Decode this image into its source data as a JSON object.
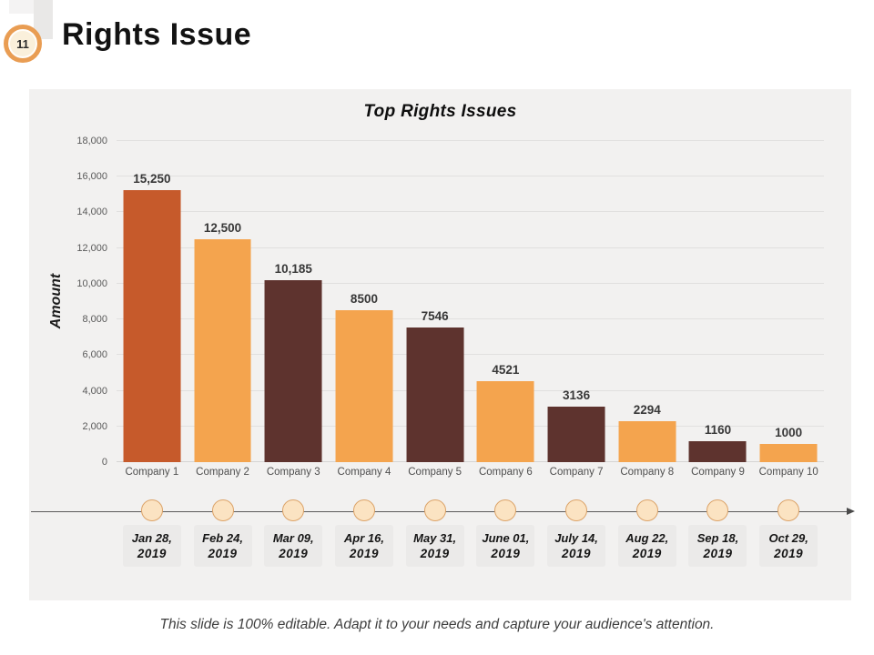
{
  "slide": {
    "badge_number": "11",
    "title": "Rights Issue",
    "footer_note": "This slide is 100% editable. Adapt it to your needs and capture your audience's attention."
  },
  "chart_data": {
    "type": "bar",
    "title": "Top Rights Issues",
    "xlabel": "",
    "ylabel": "Amount",
    "ylim": [
      0,
      18000
    ],
    "ytick_step": 2000,
    "grid": true,
    "legend_position": "none",
    "categories": [
      "Company 1",
      "Company 2",
      "Company 3",
      "Company 4",
      "Company 5",
      "Company 6",
      "Company 7",
      "Company 8",
      "Company 9",
      "Company 10"
    ],
    "values": [
      15250,
      12500,
      10185,
      8500,
      7546,
      4521,
      3136,
      2294,
      1160,
      1000
    ],
    "value_labels": [
      "15,250",
      "12,500",
      "10,185",
      "8500",
      "7546",
      "4521",
      "3136",
      "2294",
      "1160",
      "1000"
    ],
    "bar_colors": [
      "#c65a2b",
      "#f4a44e",
      "#5e332e",
      "#f4a44e",
      "#5e332e",
      "#f4a44e",
      "#5e332e",
      "#f4a44e",
      "#5e332e",
      "#f4a44e"
    ]
  },
  "timeline": {
    "dates": [
      {
        "line1": "Jan 28,",
        "line2": "2019"
      },
      {
        "line1": "Feb 24,",
        "line2": "2019"
      },
      {
        "line1": "Mar 09,",
        "line2": "2019"
      },
      {
        "line1": "Apr 16,",
        "line2": "2019"
      },
      {
        "line1": "May 31,",
        "line2": "2019"
      },
      {
        "line1": "June 01,",
        "line2": "2019"
      },
      {
        "line1": "July 14,",
        "line2": "2019"
      },
      {
        "line1": "Aug 22,",
        "line2": "2019"
      },
      {
        "line1": "Sep 18,",
        "line2": "2019"
      },
      {
        "line1": "Oct 29,",
        "line2": "2019"
      }
    ]
  }
}
